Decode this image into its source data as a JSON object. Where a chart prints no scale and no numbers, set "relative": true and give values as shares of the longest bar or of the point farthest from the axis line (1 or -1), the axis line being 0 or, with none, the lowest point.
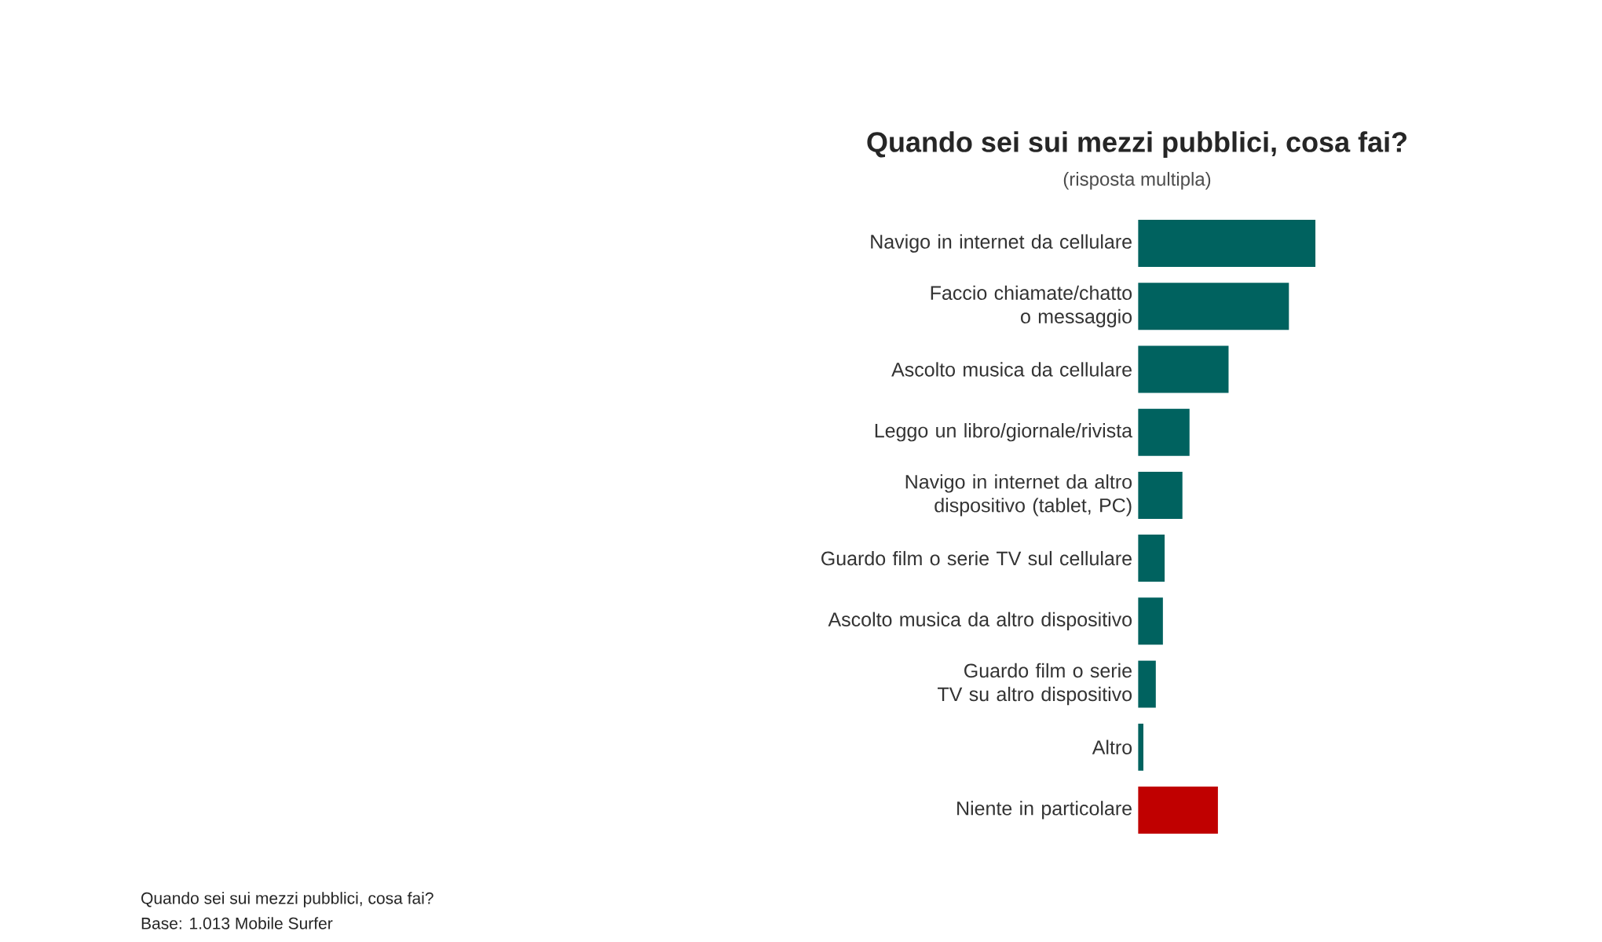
{
  "chart_data": {
    "type": "bar",
    "orientation": "horizontal",
    "relative": true,
    "title": "Quando sei sui mezzi pubblici, cosa fai?",
    "subtitle": "(risposta multipla)",
    "categories": [
      "Navigo in internet da cellulare",
      "Faccio chiamate/chatto o messaggio",
      "Ascolto musica da cellulare",
      "Leggo un libro/giornale/rivista",
      "Navigo in internet da altro dispositivo (tablet, PC)",
      "Guardo film o serie TV sul cellulare",
      "Ascolto musica da altro dispositivo",
      "Guardo film o serie TV su altro dispositivo",
      "Altro",
      "Niente in particolare"
    ],
    "values": [
      1,
      0.85,
      0.51,
      0.29,
      0.25,
      0.15,
      0.14,
      0.1,
      0.03,
      0.45
    ],
    "colors": [
      "#00625f",
      "#00625f",
      "#00625f",
      "#00625f",
      "#00625f",
      "#00625f",
      "#00625f",
      "#00625f",
      "#00625f",
      "#c00000"
    ],
    "annotations": [
      "Quando sei sui mezzi pubblici, cosa fai?",
      "Base: 1.013 Mobile Surfer"
    ]
  }
}
